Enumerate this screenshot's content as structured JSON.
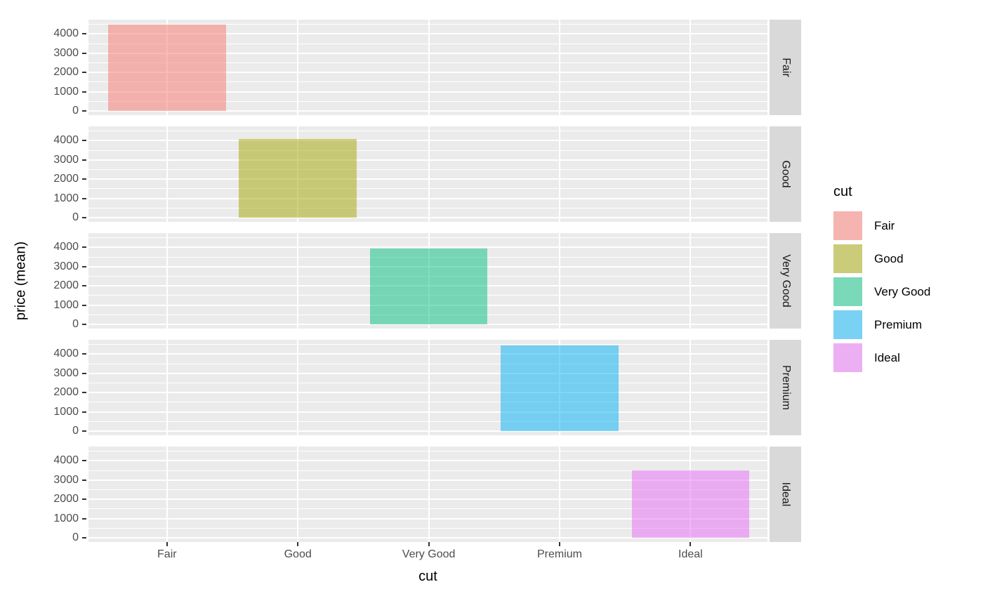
{
  "chart_data": {
    "type": "bar",
    "faceted": true,
    "title": "",
    "xlabel": "cut",
    "ylabel": "price (mean)",
    "categories": [
      "Fair",
      "Good",
      "Very Good",
      "Premium",
      "Ideal"
    ],
    "facet_rows": [
      "Fair",
      "Good",
      "Very Good",
      "Premium",
      "Ideal"
    ],
    "series": [
      {
        "facet": "Fair",
        "category": "Fair",
        "value": 4480
      },
      {
        "facet": "Good",
        "category": "Good",
        "value": 4100
      },
      {
        "facet": "Very Good",
        "category": "Very Good",
        "value": 3950
      },
      {
        "facet": "Premium",
        "category": "Premium",
        "value": 4460
      },
      {
        "facet": "Ideal",
        "category": "Ideal",
        "value": 3500
      }
    ],
    "y_ticks": [
      0,
      1000,
      2000,
      3000,
      4000
    ],
    "y_minor_ticks": [
      500,
      1500,
      2500,
      3500,
      4500
    ],
    "y_axis_range": [
      -220,
      4745
    ],
    "grid": true,
    "legend": {
      "title": "cut",
      "position": "right",
      "entries": [
        {
          "label": "Fair",
          "color": "#F8766D"
        },
        {
          "label": "Good",
          "color": "#A3A500"
        },
        {
          "label": "Very Good",
          "color": "#00BF7D"
        },
        {
          "label": "Premium",
          "color": "#00B0F6"
        },
        {
          "label": "Ideal",
          "color": "#E76BF3"
        }
      ]
    },
    "style": {
      "bar_alpha": 0.5,
      "panel_bg": "#EBEBEB",
      "strip_bg": "#D9D9D9",
      "grid_color": "#FFFFFF",
      "axis_text_color": "#4D4D4D",
      "strip_text_color": "#1A1A1A",
      "title_color": "#000000",
      "tick_mark_color": "#333333",
      "background": "#FFFFFF"
    }
  }
}
